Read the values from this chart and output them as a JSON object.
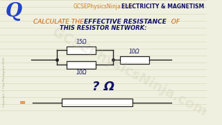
{
  "bg_color": "#f0f0e0",
  "title_normal": "CALCULATE THE ",
  "title_bold": "EFFECTIVE RESISTANCE",
  "title_of": " OF",
  "subtitle": "THIS RESISTOR NETWORK:",
  "header_left": "Q",
  "header_center": "GCSEPhysicsNinja.com",
  "header_right": "ELECTRICITY & MAGNETISM",
  "watermark": "GCSEPhysicsNinja.com",
  "r1_label": "15Ω",
  "r2_label": "10Ω",
  "r3_label": "10Ω",
  "result_label": "? Ω",
  "equal_sign": "=",
  "line_color": "#222222",
  "resistor_fill": "#ffffff",
  "resistor_border": "#222222",
  "orange_color": "#e07000",
  "dark_blue": "#111166",
  "q_color": "#2244cc",
  "header_orange": "#cc7700",
  "title_orange": "#d06000",
  "watermark_color": "#bbbb99",
  "notebook_line": "#c8c8a0",
  "copyright_color": "#999977"
}
